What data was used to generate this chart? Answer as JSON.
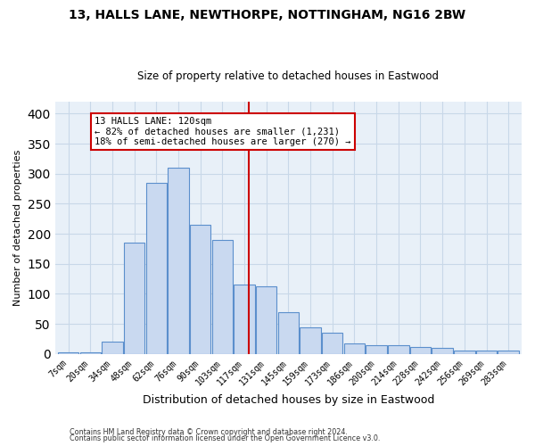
{
  "title": "13, HALLS LANE, NEWTHORPE, NOTTINGHAM, NG16 2BW",
  "subtitle": "Size of property relative to detached houses in Eastwood",
  "xlabel": "Distribution of detached houses by size in Eastwood",
  "ylabel": "Number of detached properties",
  "categories": [
    "7sqm",
    "20sqm",
    "34sqm",
    "48sqm",
    "62sqm",
    "76sqm",
    "90sqm",
    "103sqm",
    "117sqm",
    "131sqm",
    "145sqm",
    "159sqm",
    "173sqm",
    "186sqm",
    "200sqm",
    "214sqm",
    "228sqm",
    "242sqm",
    "256sqm",
    "269sqm",
    "283sqm"
  ],
  "values": [
    2,
    2,
    20,
    185,
    285,
    310,
    215,
    190,
    115,
    113,
    70,
    45,
    35,
    18,
    15,
    15,
    12,
    10,
    5,
    5,
    5
  ],
  "bar_color": "#c9d9f0",
  "bar_edge_color": "#5b8fcc",
  "grid_color": "#c8d8e8",
  "background_color": "#e8f0f8",
  "property_line_color": "#cc0000",
  "annotation_text": "13 HALLS LANE: 120sqm\n← 82% of detached houses are smaller (1,231)\n18% of semi-detached houses are larger (270) →",
  "annotation_box_color": "#cc0000",
  "footer_line1": "Contains HM Land Registry data © Crown copyright and database right 2024.",
  "footer_line2": "Contains public sector information licensed under the Open Government Licence v3.0.",
  "ylim": [
    0,
    420
  ],
  "yticks": [
    0,
    50,
    100,
    150,
    200,
    250,
    300,
    350,
    400
  ]
}
